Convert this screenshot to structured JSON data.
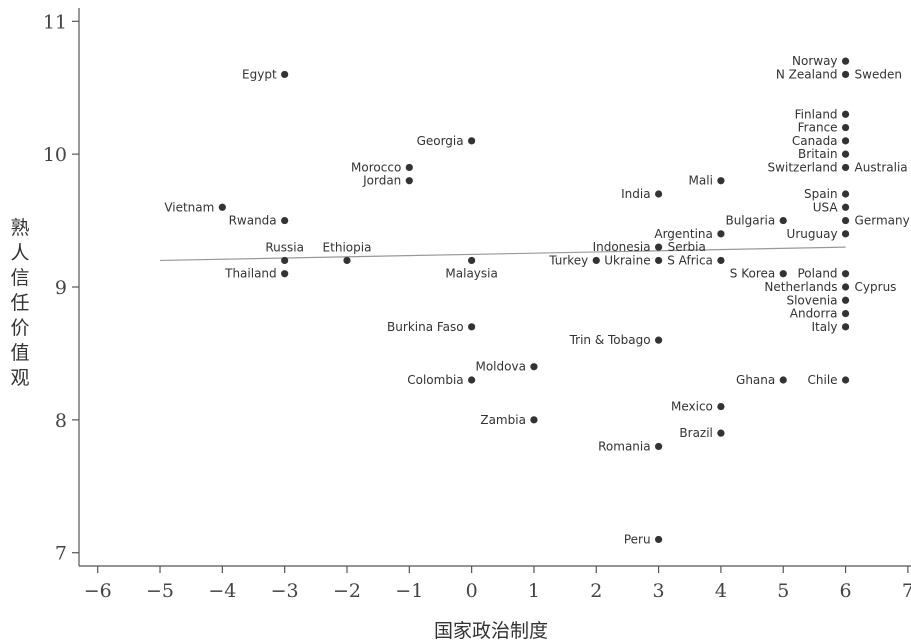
{
  "chart_data": {
    "type": "scatter",
    "xlabel": "国家政治制度",
    "ylabel": "熟人信任价值观",
    "xlim": [
      -6.3,
      7.05
    ],
    "ylim": [
      6.9,
      11.1
    ],
    "xticks": [
      -6,
      -5,
      -4,
      -3,
      -2,
      -1,
      0,
      1,
      2,
      3,
      4,
      5,
      6,
      7
    ],
    "xtick_labels": [
      "−6",
      "−5",
      "−4",
      "−3",
      "−2",
      "−1",
      "0",
      "1",
      "2",
      "3",
      "4",
      "5",
      "6",
      "7"
    ],
    "yticks": [
      7,
      8,
      9,
      10,
      11
    ],
    "ytick_labels": [
      "7",
      "8",
      "9",
      "10",
      "11"
    ],
    "grid": false,
    "colors": {
      "point": "#333333",
      "fit_line": "#999999",
      "axis": "#555555"
    },
    "fit_line": {
      "x": [
        -5,
        6
      ],
      "y": [
        9.2,
        9.3
      ]
    },
    "points": [
      {
        "label": "Egypt",
        "x": -3,
        "y": 10.6,
        "side": "left"
      },
      {
        "label": "Norway",
        "x": 6,
        "y": 10.7,
        "side": "left"
      },
      {
        "label": "N Zealand",
        "x": 6,
        "y": 10.6,
        "side": "left"
      },
      {
        "label": "Sweden",
        "x": 6,
        "y": 10.6,
        "side": "right",
        "draw": false
      },
      {
        "label": "Finland",
        "x": 6,
        "y": 10.3,
        "side": "left"
      },
      {
        "label": "France",
        "x": 6,
        "y": 10.2,
        "side": "left"
      },
      {
        "label": "Canada",
        "x": 6,
        "y": 10.1,
        "side": "left"
      },
      {
        "label": "Britain",
        "x": 6,
        "y": 10.0,
        "side": "left"
      },
      {
        "label": "Switzerland",
        "x": 6,
        "y": 9.9,
        "side": "left"
      },
      {
        "label": "Australia",
        "x": 6,
        "y": 9.9,
        "side": "right",
        "draw": false
      },
      {
        "label": "Georgia",
        "x": 0,
        "y": 10.1,
        "side": "left"
      },
      {
        "label": "Morocco",
        "x": -1,
        "y": 9.9,
        "side": "left"
      },
      {
        "label": "Jordan",
        "x": -1,
        "y": 9.8,
        "side": "left"
      },
      {
        "label": "Mali",
        "x": 4,
        "y": 9.8,
        "side": "left"
      },
      {
        "label": "India",
        "x": 3,
        "y": 9.7,
        "side": "left"
      },
      {
        "label": "Spain",
        "x": 6,
        "y": 9.7,
        "side": "left"
      },
      {
        "label": "USA",
        "x": 6,
        "y": 9.6,
        "side": "left"
      },
      {
        "label": "Vietnam",
        "x": -4,
        "y": 9.6,
        "side": "left"
      },
      {
        "label": "Rwanda",
        "x": -3,
        "y": 9.5,
        "side": "left"
      },
      {
        "label": "Bulgaria",
        "x": 5,
        "y": 9.5,
        "side": "left"
      },
      {
        "label": "Germany",
        "x": 6,
        "y": 9.5,
        "side": "right"
      },
      {
        "label": "Argentina",
        "x": 4,
        "y": 9.4,
        "side": "left"
      },
      {
        "label": "Uruguay",
        "x": 6,
        "y": 9.4,
        "side": "left"
      },
      {
        "label": "Indonesia",
        "x": 3,
        "y": 9.3,
        "side": "left"
      },
      {
        "label": "Serbia",
        "x": 3,
        "y": 9.3,
        "side": "right",
        "draw": false
      },
      {
        "label": "Russia",
        "x": -3,
        "y": 9.2,
        "side": "above"
      },
      {
        "label": "Ethiopia",
        "x": -2,
        "y": 9.2,
        "side": "above"
      },
      {
        "label": "Malaysia",
        "x": 0,
        "y": 9.2,
        "side": "below"
      },
      {
        "label": "Turkey",
        "x": 2,
        "y": 9.2,
        "side": "left"
      },
      {
        "label": "Ukraine",
        "x": 3,
        "y": 9.2,
        "side": "left"
      },
      {
        "label": "S Africa",
        "x": 4,
        "y": 9.2,
        "side": "left"
      },
      {
        "label": "Thailand",
        "x": -3,
        "y": 9.1,
        "side": "left"
      },
      {
        "label": "S Korea",
        "x": 5,
        "y": 9.1,
        "side": "left"
      },
      {
        "label": "Poland",
        "x": 6,
        "y": 9.1,
        "side": "left"
      },
      {
        "label": "Netherlands",
        "x": 6,
        "y": 9.0,
        "side": "left"
      },
      {
        "label": "Cyprus",
        "x": 6,
        "y": 9.0,
        "side": "right",
        "draw": false
      },
      {
        "label": "Slovenia",
        "x": 6,
        "y": 8.9,
        "side": "left"
      },
      {
        "label": "Andorra",
        "x": 6,
        "y": 8.8,
        "side": "left"
      },
      {
        "label": "Italy",
        "x": 6,
        "y": 8.7,
        "side": "left"
      },
      {
        "label": "Burkina Faso",
        "x": 0,
        "y": 8.7,
        "side": "left"
      },
      {
        "label": "Trin & Tobago",
        "x": 3,
        "y": 8.6,
        "side": "left"
      },
      {
        "label": "Moldova",
        "x": 1,
        "y": 8.4,
        "side": "left"
      },
      {
        "label": "Colombia",
        "x": 0,
        "y": 8.3,
        "side": "left"
      },
      {
        "label": "Ghana",
        "x": 5,
        "y": 8.3,
        "side": "left"
      },
      {
        "label": "Chile",
        "x": 6,
        "y": 8.3,
        "side": "left"
      },
      {
        "label": "Mexico",
        "x": 4,
        "y": 8.1,
        "side": "left"
      },
      {
        "label": "Zambia",
        "x": 1,
        "y": 8.0,
        "side": "left"
      },
      {
        "label": "Brazil",
        "x": 4,
        "y": 7.9,
        "side": "left"
      },
      {
        "label": "Romania",
        "x": 3,
        "y": 7.8,
        "side": "left"
      },
      {
        "label": "Peru",
        "x": 3,
        "y": 7.1,
        "side": "left"
      }
    ]
  }
}
